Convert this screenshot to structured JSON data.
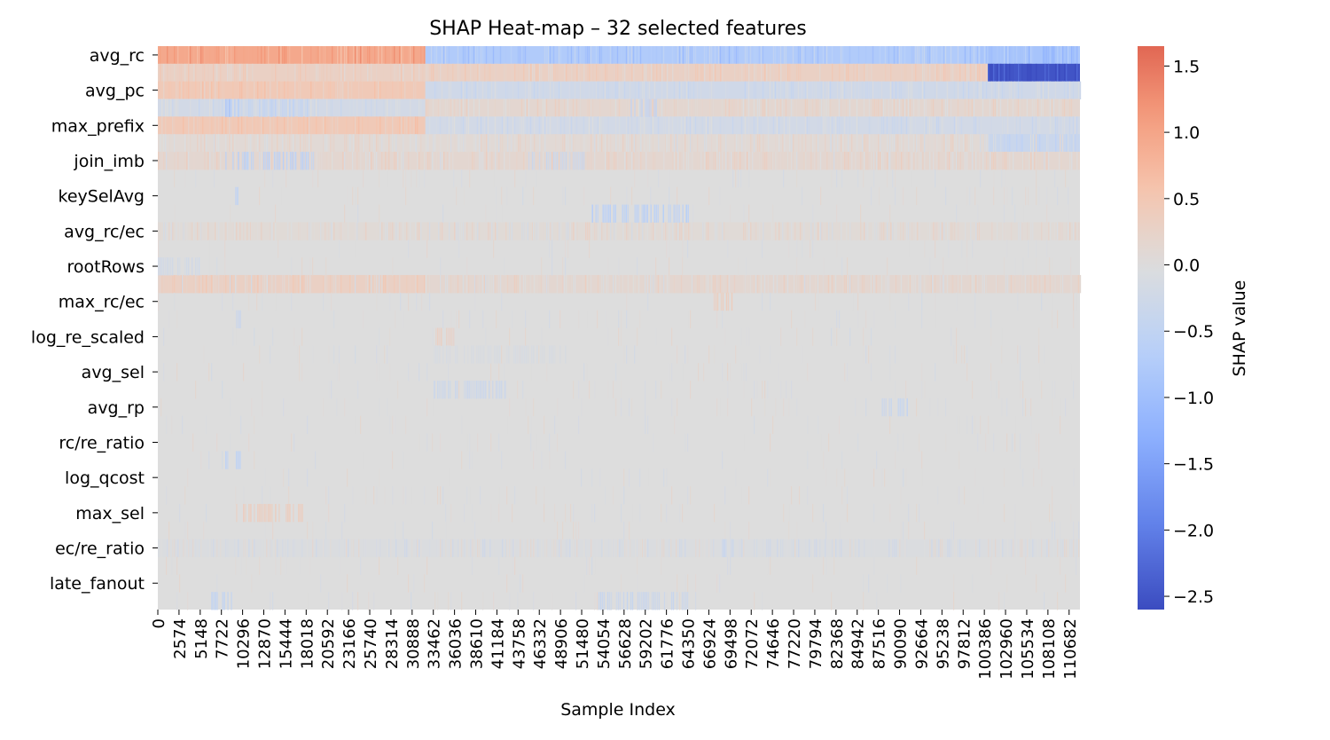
{
  "chart_data": {
    "type": "heatmap",
    "title": "SHAP Heat-map – 32 selected features",
    "xlabel": "Sample Index",
    "ylabel": "",
    "x_range": [
      0,
      112000
    ],
    "x_ticks": [
      0,
      2574,
      5148,
      7722,
      10296,
      12870,
      15444,
      18018,
      20592,
      23166,
      25740,
      28314,
      30888,
      33462,
      36036,
      38610,
      41184,
      43758,
      46332,
      48906,
      51480,
      54054,
      56628,
      59202,
      61776,
      64350,
      66924,
      69498,
      72072,
      74646,
      77220,
      79794,
      82368,
      84942,
      87516,
      90090,
      92664,
      95238,
      97812,
      100386,
      102960,
      105534,
      108108,
      110682
    ],
    "row_count": 32,
    "row_labels": [
      {
        "row": 0,
        "label": "avg_rc"
      },
      {
        "row": 2,
        "label": "avg_pc"
      },
      {
        "row": 4,
        "label": "max_prefix"
      },
      {
        "row": 6,
        "label": "join_imb"
      },
      {
        "row": 8,
        "label": "keySelAvg"
      },
      {
        "row": 10,
        "label": "avg_rc/ec"
      },
      {
        "row": 12,
        "label": "rootRows"
      },
      {
        "row": 14,
        "label": "max_rc/ec"
      },
      {
        "row": 16,
        "label": "log_re_scaled"
      },
      {
        "row": 18,
        "label": "avg_sel"
      },
      {
        "row": 20,
        "label": "avg_rp"
      },
      {
        "row": 22,
        "label": "rc/re_ratio"
      },
      {
        "row": 24,
        "label": "log_qcost"
      },
      {
        "row": 26,
        "label": "max_sel"
      },
      {
        "row": 28,
        "label": "ec/re_ratio"
      },
      {
        "row": 30,
        "label": "late_fanout"
      }
    ],
    "value_range": [
      -2.6,
      1.65
    ],
    "colormap": "coolwarm",
    "colorbar": {
      "label": "SHAP value",
      "ticks": [
        {
          "value": 1.5,
          "label": "1.5"
        },
        {
          "value": 1.0,
          "label": "1.0"
        },
        {
          "value": 0.5,
          "label": "0.5"
        },
        {
          "value": 0.0,
          "label": "0.0"
        },
        {
          "value": -0.5,
          "label": "−0.5"
        },
        {
          "value": -1.0,
          "label": "−1.0"
        },
        {
          "value": -1.5,
          "label": "−1.5"
        },
        {
          "value": -2.0,
          "label": "−2.0"
        },
        {
          "value": -2.5,
          "label": "−2.5"
        }
      ]
    },
    "segments": [
      {
        "row": 0,
        "x0": 0,
        "x1": 32500,
        "value": 0.95
      },
      {
        "row": 0,
        "x0": 32500,
        "x1": 100800,
        "value": -0.75
      },
      {
        "row": 0,
        "x0": 100800,
        "x1": 112000,
        "value": -0.9
      },
      {
        "row": 1,
        "x0": 0,
        "x1": 100800,
        "value": 0.3
      },
      {
        "row": 1,
        "x0": 100800,
        "x1": 112000,
        "value": -2.5
      },
      {
        "row": 2,
        "x0": 0,
        "x1": 32500,
        "value": 0.45
      },
      {
        "row": 2,
        "x0": 32500,
        "x1": 112000,
        "value": -0.25
      },
      {
        "row": 3,
        "x0": 0,
        "x1": 32500,
        "value": -0.2
      },
      {
        "row": 3,
        "x0": 32500,
        "x1": 112000,
        "value": 0.15
      },
      {
        "row": 4,
        "x0": 0,
        "x1": 32500,
        "value": 0.45
      },
      {
        "row": 4,
        "x0": 32500,
        "x1": 112000,
        "value": -0.2
      },
      {
        "row": 5,
        "x0": 0,
        "x1": 100800,
        "value": 0.1
      },
      {
        "row": 5,
        "x0": 100800,
        "x1": 112000,
        "value": -0.35
      },
      {
        "row": 6,
        "x0": 0,
        "x1": 112000,
        "value": 0.15
      },
      {
        "row": 10,
        "x0": 0,
        "x1": 112000,
        "value": 0.08
      },
      {
        "row": 13,
        "x0": 0,
        "x1": 32500,
        "value": 0.3
      },
      {
        "row": 13,
        "x0": 32500,
        "x1": 112000,
        "value": 0.15
      },
      {
        "row": 28,
        "x0": 0,
        "x1": 112000,
        "value": -0.05
      }
    ],
    "bands": [
      {
        "row": 3,
        "x0": 8200,
        "x1": 10000,
        "value": -0.8
      },
      {
        "row": 3,
        "x0": 11000,
        "x1": 18500,
        "value": -0.5
      },
      {
        "row": 3,
        "x0": 57000,
        "x1": 60500,
        "value": -0.45
      },
      {
        "row": 6,
        "x0": 8200,
        "x1": 10000,
        "value": -0.8
      },
      {
        "row": 6,
        "x0": 10000,
        "x1": 19000,
        "value": -0.55
      },
      {
        "row": 6,
        "x0": 45000,
        "x1": 52000,
        "value": -0.3
      },
      {
        "row": 8,
        "x0": 9400,
        "x1": 9800,
        "value": -0.6
      },
      {
        "row": 9,
        "x0": 52500,
        "x1": 64500,
        "value": -0.6
      },
      {
        "row": 15,
        "x0": 9500,
        "x1": 10000,
        "value": -0.4
      },
      {
        "row": 23,
        "x0": 8200,
        "x1": 10000,
        "value": -0.5
      },
      {
        "row": 28,
        "x0": 68500,
        "x1": 70000,
        "value": -0.4
      },
      {
        "row": 31,
        "x0": 6500,
        "x1": 9000,
        "value": -0.5
      },
      {
        "row": 31,
        "x0": 53500,
        "x1": 64500,
        "value": -0.35
      },
      {
        "row": 20,
        "x0": 87500,
        "x1": 91500,
        "value": -0.4
      },
      {
        "row": 19,
        "x0": 33500,
        "x1": 42500,
        "value": -0.3
      },
      {
        "row": 16,
        "x0": 33500,
        "x1": 36000,
        "value": 0.3
      },
      {
        "row": 14,
        "x0": 67500,
        "x1": 70000,
        "value": 0.4
      },
      {
        "row": 26,
        "x0": 9500,
        "x1": 17500,
        "value": 0.35
      },
      {
        "row": 12,
        "x0": 0,
        "x1": 5000,
        "value": -0.2
      },
      {
        "row": 17,
        "x0": 33500,
        "x1": 50000,
        "value": -0.1
      }
    ],
    "grid": false,
    "legend": "none"
  }
}
